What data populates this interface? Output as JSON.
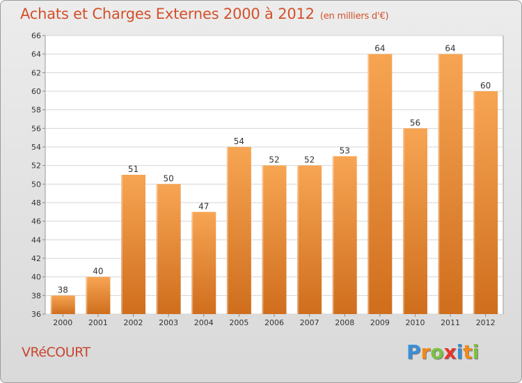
{
  "header": {
    "title": "Achats et Charges Externes 2000 à 2012",
    "subtitle": "(en milliers d'€)"
  },
  "footer": {
    "commune": "VRéCOURT",
    "logo_letters": [
      {
        "ch": "P",
        "color": "#3a8fd6"
      },
      {
        "ch": "r",
        "color": "#f08a1c"
      },
      {
        "ch": "o",
        "color": "#7cc242"
      },
      {
        "ch": "x",
        "color": "#e8342b"
      },
      {
        "ch": "i",
        "color": "#3a8fd6"
      },
      {
        "ch": "t",
        "color": "#f08a1c"
      },
      {
        "ch": "i",
        "color": "#7cc242"
      }
    ]
  },
  "chart_data": {
    "type": "bar",
    "title": "Achats et Charges Externes 2000 à 2012",
    "subtitle": "(en milliers d'€)",
    "categories": [
      "2000",
      "2001",
      "2002",
      "2003",
      "2004",
      "2005",
      "2006",
      "2007",
      "2008",
      "2009",
      "2010",
      "2011",
      "2012"
    ],
    "values": [
      38,
      40,
      51,
      50,
      47,
      54,
      52,
      52,
      53,
      64,
      56,
      64,
      60
    ],
    "xlabel": "",
    "ylabel": "",
    "ylim": [
      36,
      66
    ],
    "yticks": [
      36,
      38,
      40,
      42,
      44,
      46,
      48,
      50,
      52,
      54,
      56,
      58,
      60,
      62,
      64,
      66
    ],
    "grid": "horizontal",
    "bar_color_top": "#f7a553",
    "bar_color_bottom": "#cf6e1d",
    "plot_background": "#ffffff"
  }
}
